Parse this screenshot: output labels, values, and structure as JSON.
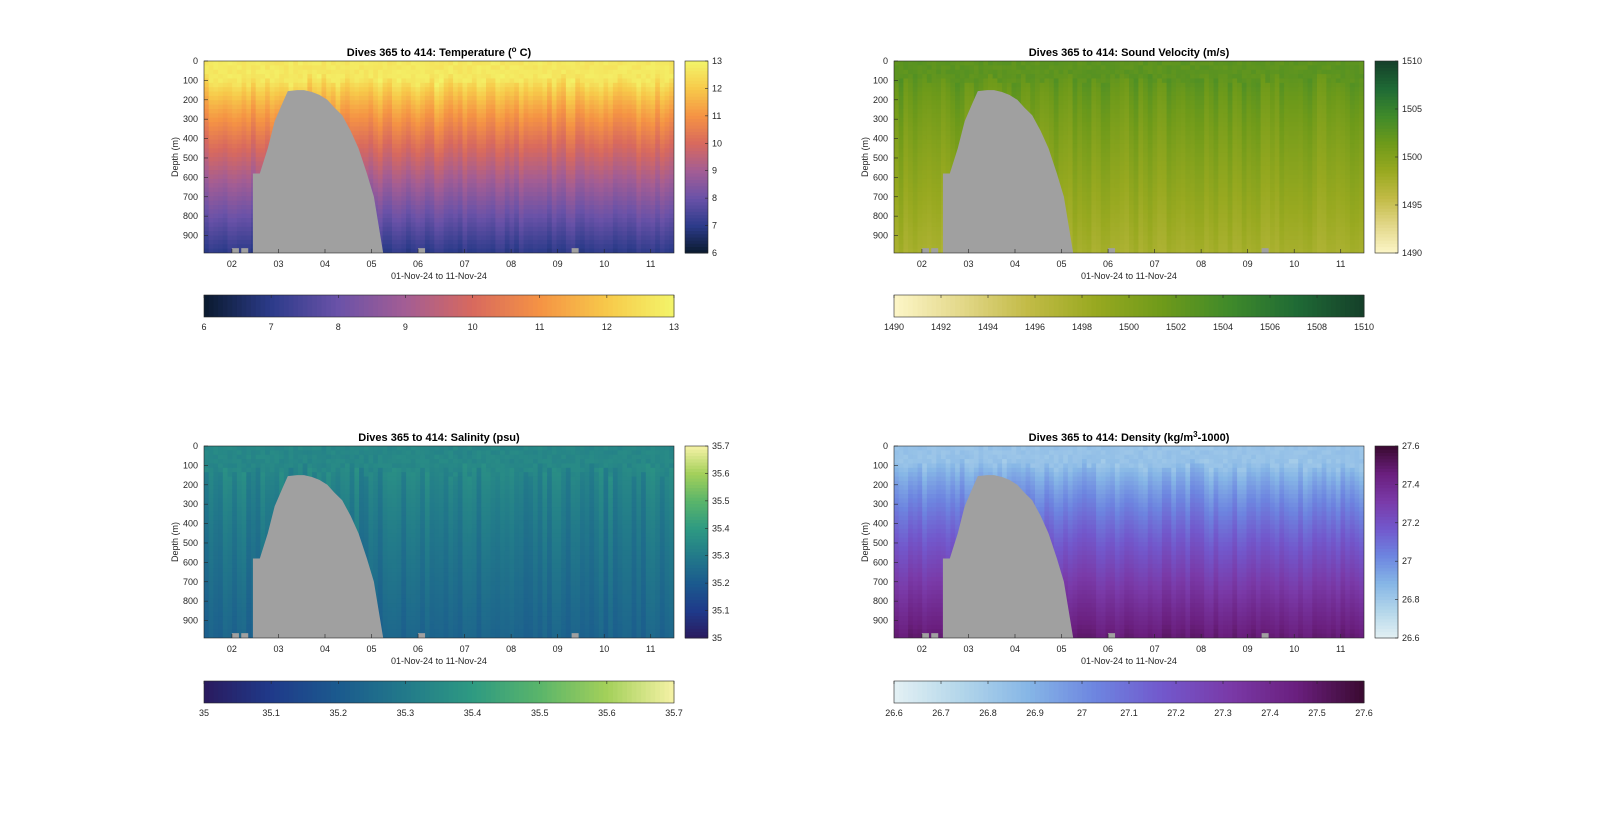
{
  "figure": {
    "background": "#ffffff"
  },
  "chart_data": [
    {
      "type": "heatmap",
      "title": "Dives 365 to 414: Temperature (°C)",
      "title_parts": {
        "main": "Dives 365 to 414: Temperature (",
        "sup": "o",
        "tail": " C)"
      },
      "xlabel": "01-Nov-24 to 11-Nov-24",
      "ylabel": "Depth (m)",
      "x_ticks": [
        "02",
        "03",
        "04",
        "05",
        "06",
        "07",
        "08",
        "09",
        "10",
        "11"
      ],
      "y_ticks": [
        0,
        100,
        200,
        300,
        400,
        500,
        600,
        700,
        800,
        900
      ],
      "xlim_days": [
        1.4,
        11.5
      ],
      "ylim": [
        0,
        990
      ],
      "y_reversed": true,
      "colorbar_range": [
        6,
        13
      ],
      "colorbar_ticks": [
        6,
        7,
        8,
        9,
        10,
        11,
        12,
        13
      ],
      "horizontal_colorbar_ticks": [
        6,
        7,
        8,
        9,
        10,
        11,
        12,
        13
      ],
      "colormap": [
        "#0a1a2e",
        "#2c3b8a",
        "#6a52a8",
        "#a35d94",
        "#d8695e",
        "#f59344",
        "#f7c94a",
        "#f3f56a"
      ],
      "profile": {
        "surface": 12.7,
        "mixed_layer_depth_m": 90,
        "deep": 7.0
      },
      "no_data_color": "#a0a0a0"
    },
    {
      "type": "heatmap",
      "title": "Dives 365 to 414: Sound Velocity (m/s)",
      "xlabel": "01-Nov-24 to 11-Nov-24",
      "ylabel": "Depth (m)",
      "x_ticks": [
        "02",
        "03",
        "04",
        "05",
        "06",
        "07",
        "08",
        "09",
        "10",
        "11"
      ],
      "y_ticks": [
        0,
        100,
        200,
        300,
        400,
        500,
        600,
        700,
        800,
        900
      ],
      "xlim_days": [
        1.4,
        11.5
      ],
      "ylim": [
        0,
        990
      ],
      "y_reversed": true,
      "colorbar_range": [
        1490,
        1510
      ],
      "colorbar_ticks": [
        1490,
        1495,
        1500,
        1505,
        1510
      ],
      "horizontal_colorbar_ticks": [
        1490,
        1492,
        1494,
        1496,
        1498,
        1500,
        1502,
        1504,
        1506,
        1508,
        1510
      ],
      "colormap": [
        "#fdf6c8",
        "#e3d88a",
        "#c2bb46",
        "#98a920",
        "#6e9a1a",
        "#3f8a2a",
        "#1f6a35",
        "#15402a"
      ],
      "profile": {
        "surface": 1502.5,
        "mixed_layer_depth_m": 90,
        "deep": 1497.5
      },
      "no_data_color": "#a0a0a0"
    },
    {
      "type": "heatmap",
      "title": "Dives 365 to 414: Salinity (psu)",
      "xlabel": "01-Nov-24 to 11-Nov-24",
      "ylabel": "Depth (m)",
      "x_ticks": [
        "02",
        "03",
        "04",
        "05",
        "06",
        "07",
        "08",
        "09",
        "10",
        "11"
      ],
      "y_ticks": [
        0,
        100,
        200,
        300,
        400,
        500,
        600,
        700,
        800,
        900
      ],
      "xlim_days": [
        1.4,
        11.5
      ],
      "ylim": [
        0,
        990
      ],
      "y_reversed": true,
      "colorbar_range": [
        35,
        35.7
      ],
      "colorbar_ticks": [
        35,
        35.1,
        35.2,
        35.3,
        35.4,
        35.5,
        35.6,
        35.7
      ],
      "horizontal_colorbar_ticks": [
        35,
        35.1,
        35.2,
        35.3,
        35.4,
        35.5,
        35.6,
        35.7
      ],
      "colormap": [
        "#2a1a5e",
        "#1f3a8a",
        "#1b5a8e",
        "#227a8a",
        "#2e9a82",
        "#5ab56a",
        "#a3d05a",
        "#f6f2a6"
      ],
      "profile": {
        "surface": 35.34,
        "mixed_layer_depth_m": 120,
        "deep": 35.23
      },
      "no_data_color": "#a0a0a0"
    },
    {
      "type": "heatmap",
      "title": "Dives 365 to 414: Density (kg/m³-1000)",
      "title_parts": {
        "main": "Dives 365 to 414: Density (kg/m",
        "sup": "3",
        "tail": "-1000)"
      },
      "xlabel": "01-Nov-24 to 11-Nov-24",
      "ylabel": "Depth (m)",
      "x_ticks": [
        "02",
        "03",
        "04",
        "05",
        "06",
        "07",
        "08",
        "09",
        "10",
        "11"
      ],
      "y_ticks": [
        0,
        100,
        200,
        300,
        400,
        500,
        600,
        700,
        800,
        900
      ],
      "xlim_days": [
        1.4,
        11.5
      ],
      "ylim": [
        0,
        990
      ],
      "y_reversed": true,
      "colorbar_range": [
        26.6,
        27.6
      ],
      "colorbar_ticks": [
        26.6,
        26.8,
        27,
        27.2,
        27.4,
        27.6
      ],
      "horizontal_colorbar_ticks": [
        26.6,
        26.7,
        26.8,
        26.9,
        27,
        27.1,
        27.2,
        27.3,
        27.4,
        27.5,
        27.6
      ],
      "colormap": [
        "#e4f1f4",
        "#b3d6ea",
        "#86b6e6",
        "#6d85e0",
        "#7258cc",
        "#7a3aa8",
        "#6a1f7e",
        "#3a0a30"
      ],
      "profile": {
        "surface": 26.83,
        "mixed_layer_depth_m": 90,
        "deep": 27.48
      },
      "no_data_color": "#a0a0a0"
    }
  ]
}
